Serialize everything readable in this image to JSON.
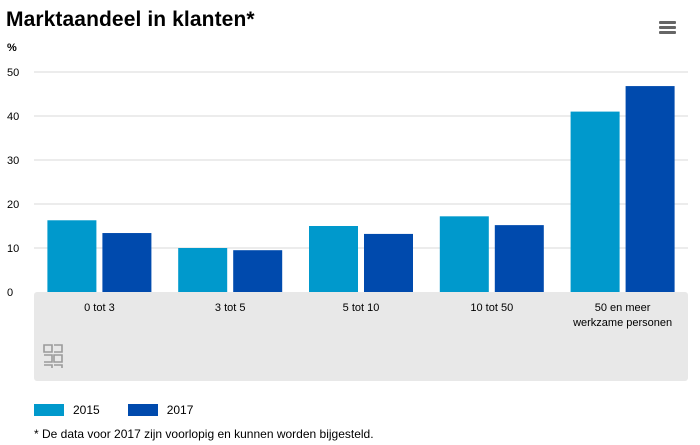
{
  "header": {
    "title": "Marktaandeel in klanten*",
    "unit": "%",
    "menu_icon": "hamburger-menu-icon"
  },
  "colors": {
    "series_2015": "#0099cc",
    "series_2017": "#004aad",
    "axis_panel_bg": "#e8e8e8",
    "grid": "#d9d9d9"
  },
  "chart_data": {
    "type": "bar",
    "title": "Marktaandeel in klanten*",
    "xlabel": "",
    "ylabel": "%",
    "ylim": [
      0,
      50
    ],
    "yticks": [
      0,
      10,
      20,
      30,
      40,
      50
    ],
    "grid": true,
    "legend_position": "bottom-left",
    "categories": [
      "0 tot 3",
      "3 tot 5",
      "5 tot 10",
      "10 tot 50",
      "50 en meer werkzame personen"
    ],
    "category_label_lines": [
      [
        "0 tot 3"
      ],
      [
        "3 tot 5"
      ],
      [
        "5 tot 10"
      ],
      [
        "10 tot 50"
      ],
      [
        "50 en meer",
        "werkzame personen"
      ]
    ],
    "series": [
      {
        "name": "2015",
        "values": [
          16.3,
          10.0,
          15.0,
          17.2,
          41.0
        ]
      },
      {
        "name": "2017",
        "values": [
          13.4,
          9.5,
          13.2,
          15.2,
          46.8
        ]
      }
    ]
  },
  "legend": {
    "items": [
      {
        "label": "2015",
        "color": "#0099cc"
      },
      {
        "label": "2017",
        "color": "#004aad"
      }
    ]
  },
  "footnote": "* De data voor 2017 zijn voorlopig en kunnen worden bijgesteld.",
  "logo_icon": "cbs-logo-icon"
}
